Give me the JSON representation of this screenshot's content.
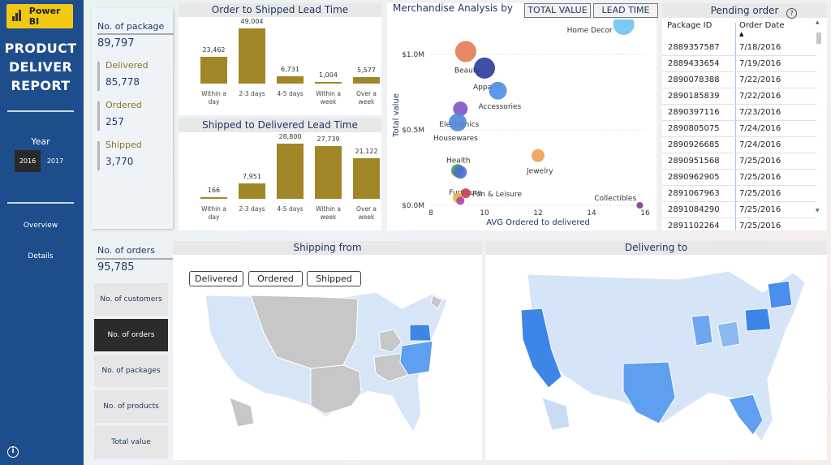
{
  "brand": {
    "label": "Power BI"
  },
  "sidebar": {
    "title_lines": [
      "PRODUCT",
      "DELIVER",
      "REPORT"
    ],
    "year_label": "Year",
    "years": [
      {
        "label": "2016",
        "selected": true
      },
      {
        "label": "2017",
        "selected": false
      }
    ],
    "nav": [
      "Overview",
      "Details"
    ],
    "info": "i"
  },
  "kpis": {
    "packages_label": "No. of package",
    "packages_value": "89,797",
    "delivered_label": "Delivered",
    "delivered_value": "85,778",
    "ordered_label": "Ordered",
    "ordered_value": "257",
    "shipped_label": "Shipped",
    "shipped_value": "3,770"
  },
  "order_to_shipped": {
    "title": "Order to Shipped Lead Time",
    "categories": [
      "Within a day",
      "2-3 days",
      "4-5 days",
      "Within a week",
      "Over a week"
    ],
    "labels": [
      "23,462",
      "49,004",
      "6,731",
      "1,004",
      "5,577"
    ],
    "values": [
      23462,
      49004,
      6731,
      1004,
      5577
    ],
    "max": 49004
  },
  "shipped_to_delivered": {
    "title": "Shipped to Delivered Lead Time",
    "categories": [
      "Within a day",
      "2-3 days",
      "4-5 days",
      "Within a week",
      "Over a week"
    ],
    "labels": [
      "166",
      "7,951",
      "28,800",
      "27,739",
      "21,122"
    ],
    "values": [
      166,
      7951,
      28800,
      27739,
      21122
    ],
    "max": 28800
  },
  "merch": {
    "title": "Merchandise Analysis by",
    "buttons": [
      "TOTAL VALUE",
      "LEAD TIME"
    ],
    "chart_data": {
      "type": "scatter",
      "xlabel": "AVG Ordered to delivered",
      "ylabel": "Total value",
      "x_ticks": [
        "8",
        "10",
        "12",
        "14",
        "16"
      ],
      "y_ticks": [
        "$0.0M",
        "$0.5M",
        "$1.0M"
      ],
      "xlim": [
        8,
        16
      ],
      "ylim": [
        0,
        1.2
      ],
      "points": [
        {
          "name": "Home Decor",
          "x": 15.2,
          "y": 1.2,
          "r": 13,
          "color": "#6ec3ef"
        },
        {
          "name": "Beauty",
          "x": 9.3,
          "y": 1.02,
          "r": 13,
          "color": "#e27b52"
        },
        {
          "name": "Apparel",
          "x": 10.0,
          "y": 0.91,
          "r": 13,
          "color": "#2b3b9b"
        },
        {
          "name": "Accessories",
          "x": 10.5,
          "y": 0.76,
          "r": 11,
          "color": "#4e8ce8"
        },
        {
          "name": "Electronics",
          "x": 9.1,
          "y": 0.64,
          "r": 9,
          "color": "#7e54c4"
        },
        {
          "name": "Housewares",
          "x": 9.0,
          "y": 0.55,
          "r": 11,
          "color": "#4f86d9"
        },
        {
          "name": "Jewelry",
          "x": 12.0,
          "y": 0.33,
          "r": 8,
          "color": "#ef9e58"
        },
        {
          "name": "Health",
          "x": 9.0,
          "y": 0.23,
          "r": 8,
          "color": "#3f9c52"
        },
        {
          "name": "Furniture",
          "x": 9.1,
          "y": 0.22,
          "r": 8,
          "color": "#4d6ed0"
        },
        {
          "name": "Fun & Leisure",
          "x": 9.3,
          "y": 0.08,
          "r": 6,
          "color": "#c7414a"
        },
        {
          "name": "",
          "x": 9.0,
          "y": 0.05,
          "r": 6,
          "color": "#e8b43a"
        },
        {
          "name": "",
          "x": 9.1,
          "y": 0.03,
          "r": 5,
          "color": "#b43fb5"
        },
        {
          "name": "Collectibles",
          "x": 15.8,
          "y": 0.0,
          "r": 4,
          "color": "#8c2fa0"
        }
      ]
    }
  },
  "pending": {
    "title": "Pending order",
    "help": "?",
    "col_id": "Package ID",
    "col_date": "Order Date",
    "rows": [
      [
        "2889357587",
        "7/18/2016"
      ],
      [
        "2889433654",
        "7/19/2016"
      ],
      [
        "2890078388",
        "7/22/2016"
      ],
      [
        "2890185839",
        "7/22/2016"
      ],
      [
        "2890397116",
        "7/23/2016"
      ],
      [
        "2890805075",
        "7/24/2016"
      ],
      [
        "2890926685",
        "7/24/2016"
      ],
      [
        "2890951568",
        "7/25/2016"
      ],
      [
        "2890962905",
        "7/25/2016"
      ],
      [
        "2891067963",
        "7/25/2016"
      ],
      [
        "2891084290",
        "7/25/2016"
      ],
      [
        "2891102264",
        "7/25/2016"
      ]
    ]
  },
  "orders": {
    "label": "No. of orders",
    "value": "95,785",
    "metrics": [
      {
        "label": "No. of customers",
        "active": false
      },
      {
        "label": "No. of orders",
        "active": true
      },
      {
        "label": "No. of packages",
        "active": false
      },
      {
        "label": "No. of products",
        "active": false
      },
      {
        "label": "Total value",
        "active": false
      }
    ]
  },
  "shipping_from": {
    "title": "Shipping from",
    "buttons": [
      "Delivered",
      "Ordered",
      "Shipped"
    ]
  },
  "delivering_to": {
    "title": "Delivering to"
  }
}
